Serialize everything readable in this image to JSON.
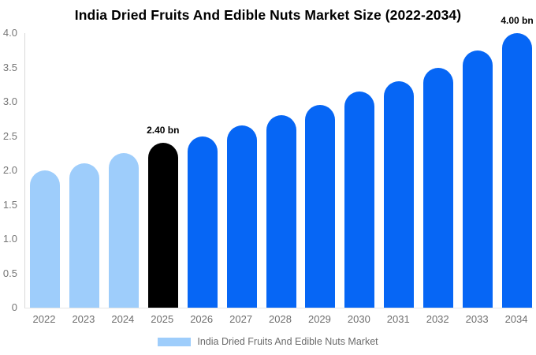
{
  "chart_data": {
    "type": "bar",
    "title": "India Dried Fruits And Edible Nuts Market Size (2022-2034)",
    "categories": [
      "2022",
      "2023",
      "2024",
      "2025",
      "2026",
      "2027",
      "2028",
      "2029",
      "2030",
      "2031",
      "2032",
      "2033",
      "2034"
    ],
    "values": [
      2.0,
      2.1,
      2.25,
      2.4,
      2.5,
      2.65,
      2.8,
      2.95,
      3.15,
      3.3,
      3.5,
      3.75,
      4.0
    ],
    "unit": "bn",
    "xlabel": "",
    "ylabel": "",
    "ylim": [
      0,
      4.0
    ],
    "y_ticks": [
      "4.0",
      "3.5",
      "3.0",
      "2.5",
      "2.0",
      "1.5",
      "1.0",
      "0.5",
      "0"
    ],
    "grid": false,
    "legend_position": "bottom",
    "legend": [
      "India Dried Fruits And Edible Nuts Market"
    ],
    "bar_colors": [
      "#9ECDFB",
      "#9ECDFB",
      "#9ECDFB",
      "#000000",
      "#0666F5",
      "#0666F5",
      "#0666F5",
      "#0666F5",
      "#0666F5",
      "#0666F5",
      "#0666F5",
      "#0666F5",
      "#0666F5"
    ],
    "annotations": [
      {
        "category": "2025",
        "text": "2.40 bn"
      },
      {
        "category": "2034",
        "text": "4.00 bn"
      }
    ]
  },
  "colors": {
    "light_blue": "#9ECDFB",
    "bright_blue": "#0666F5",
    "black_bar": "#000000",
    "axis_text": "#757575",
    "legend_text": "#6B6B6B",
    "axis_line": "#D9D9D9"
  },
  "legend": {
    "label": "India Dried Fruits And Edible Nuts Market"
  }
}
